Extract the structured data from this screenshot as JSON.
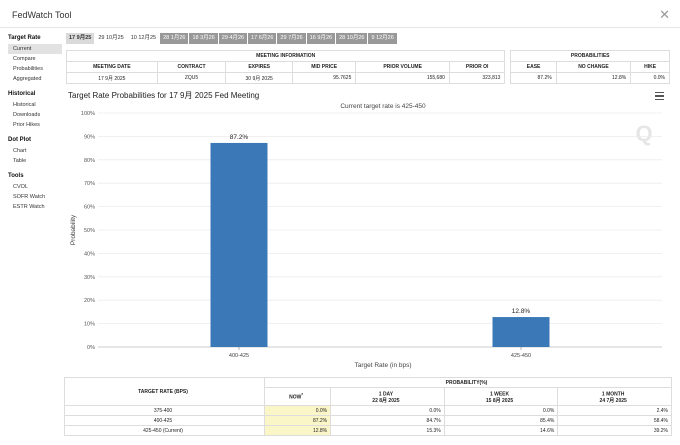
{
  "window": {
    "title": "FedWatch Tool",
    "close_glyph": "✕"
  },
  "sidebar": [
    {
      "heading": "Target Rate",
      "items": [
        "Current",
        "Compare",
        "Probabilities",
        "Aggregated"
      ],
      "active": 0
    },
    {
      "heading": "Historical",
      "items": [
        "Historical",
        "Downloads",
        "Prior Hikes"
      ],
      "active": -1
    },
    {
      "heading": "Dot Plot",
      "items": [
        "Chart",
        "Table"
      ],
      "active": -1
    },
    {
      "heading": "Tools",
      "items": [
        "CVOL",
        "SOFR Watch",
        "ESTR Watch"
      ],
      "active": -1
    }
  ],
  "meeting_dates": [
    {
      "label": "17 9月25",
      "style": "active"
    },
    {
      "label": "29 10月25",
      "style": "plain"
    },
    {
      "label": "10 12月25",
      "style": "plain"
    },
    {
      "label": "28 1月26",
      "style": "grey"
    },
    {
      "label": "18 3月26",
      "style": "grey"
    },
    {
      "label": "29 4月26",
      "style": "grey"
    },
    {
      "label": "17 6月26",
      "style": "grey"
    },
    {
      "label": "29 7月26",
      "style": "grey"
    },
    {
      "label": "16 9月26",
      "style": "grey"
    },
    {
      "label": "28 10月26",
      "style": "grey"
    },
    {
      "label": "9 12月26",
      "style": "grey"
    }
  ],
  "meeting_info": {
    "section_title": "MEETING INFORMATION",
    "headers": [
      "MEETING DATE",
      "CONTRACT",
      "EXPIRES",
      "MID PRICE",
      "PRIOR VOLUME",
      "PRIOR OI"
    ],
    "values": [
      "17 9月 2025",
      "ZQU5",
      "30 9月 2025",
      "95.7625",
      "155,680",
      "323,813"
    ]
  },
  "probabilities_box": {
    "section_title": "PROBABILITIES",
    "headers": [
      "EASE",
      "NO CHANGE",
      "HIKE"
    ],
    "values": [
      "87.2%",
      "12.8%",
      "0.0%"
    ]
  },
  "chart_data": {
    "type": "bar",
    "title": "Target Rate Probabilities for 17 9月 2025 Fed Meeting",
    "subtitle": "Current target rate is 425-450",
    "categories": [
      "400-425",
      "425-450"
    ],
    "values": [
      87.2,
      12.8
    ],
    "data_labels": [
      "87.2%",
      "12.8%"
    ],
    "xlabel": "Target Rate (in bps)",
    "ylabel": "Probability",
    "ylim": [
      0,
      100
    ],
    "yticks": [
      "0%",
      "10%",
      "20%",
      "30%",
      "40%",
      "50%",
      "60%",
      "70%",
      "80%",
      "90%",
      "100%"
    ],
    "grid": true,
    "bar_color": "#3b78b8",
    "watermark": "Q"
  },
  "prob_table": {
    "header_main": "PROBABILITY(%)",
    "col0_header": "TARGET RATE (BPS)",
    "columns": [
      {
        "label": "NOW",
        "sup": "*",
        "sub": ""
      },
      {
        "label": "1 DAY",
        "sup": "",
        "sub": "22 8月 2025"
      },
      {
        "label": "1 WEEK",
        "sup": "",
        "sub": "15 8月 2025"
      },
      {
        "label": "1 MONTH",
        "sup": "",
        "sub": "24 7月 2025"
      }
    ],
    "rows": [
      {
        "rate": "375-400",
        "vals": [
          "0.0%",
          "0.0%",
          "0.0%",
          "2.4%"
        ]
      },
      {
        "rate": "400-425",
        "vals": [
          "87.2%",
          "84.7%",
          "85.4%",
          "58.4%"
        ]
      },
      {
        "rate": "425-450 (Current)",
        "vals": [
          "12.8%",
          "15.3%",
          "14.6%",
          "39.2%"
        ]
      }
    ]
  }
}
